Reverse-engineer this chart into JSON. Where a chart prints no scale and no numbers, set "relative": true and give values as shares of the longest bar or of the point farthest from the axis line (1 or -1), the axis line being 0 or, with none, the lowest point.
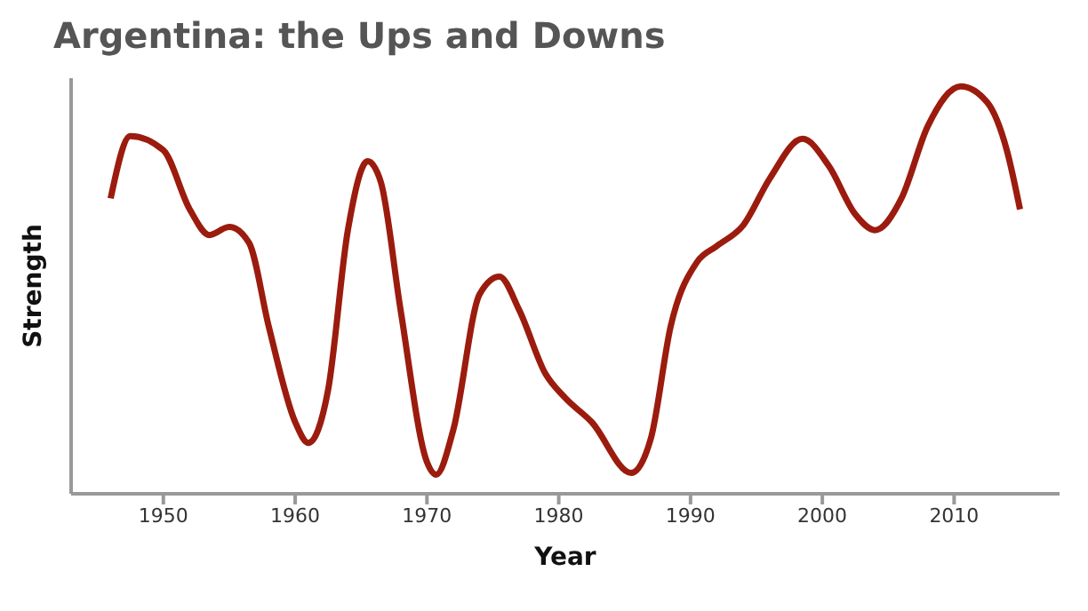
{
  "chart_data": {
    "type": "line",
    "title": "Argentina: the Ups and Downs",
    "xlabel": "Year",
    "ylabel": "Strength",
    "relative": true,
    "x": [
      1946,
      1947.5,
      1950,
      1952,
      1953.5,
      1955,
      1956.5,
      1958,
      1960,
      1961,
      1962.5,
      1964,
      1965.5,
      1966.5,
      1968,
      1970,
      1970.7,
      1972,
      1974,
      1975.5,
      1977,
      1979,
      1980.5,
      1982.5,
      1985.5,
      1987,
      1988.5,
      1990.5,
      1992,
      1994,
      1996,
      1998.5,
      2000.5,
      2002.5,
      2004,
      2006,
      2008,
      2010.5,
      2012.5,
      2014,
      2015
    ],
    "series": [
      {
        "color": "#9b1c0e",
        "values": [
          0.725,
          0.878,
          0.843,
          0.698,
          0.635,
          0.655,
          0.616,
          0.41,
          0.176,
          0.125,
          0.255,
          0.647,
          0.816,
          0.765,
          0.451,
          0.078,
          0.047,
          0.157,
          0.49,
          0.533,
          0.451,
          0.294,
          0.235,
          0.176,
          0.051,
          0.137,
          0.412,
          0.569,
          0.608,
          0.659,
          0.773,
          0.871,
          0.804,
          0.686,
          0.647,
          0.725,
          0.902,
          1,
          0.961,
          0.843,
          0.698
        ]
      }
    ],
    "xlim": [
      1943,
      2018
    ],
    "xticks": [
      1950,
      1960,
      1970,
      1980,
      1990,
      2000,
      2010
    ],
    "tick_labels": "x",
    "grid": false,
    "legend": false,
    "marker": "none",
    "line_style": "solid"
  }
}
